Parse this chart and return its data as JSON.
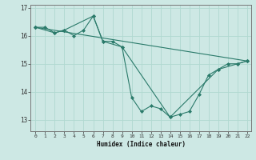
{
  "xlabel": "Humidex (Indice chaleur)",
  "background_color": "#cde8e4",
  "grid_color": "#b0d8d0",
  "line_color": "#2a7a6a",
  "xlim": [
    -0.5,
    22.4
  ],
  "ylim": [
    12.6,
    17.1
  ],
  "yticks": [
    13,
    14,
    15,
    16,
    17
  ],
  "xticks": [
    0,
    1,
    2,
    3,
    4,
    5,
    6,
    7,
    8,
    9,
    10,
    11,
    12,
    13,
    14,
    15,
    16,
    17,
    18,
    19,
    20,
    21,
    22
  ],
  "series": [
    {
      "x": [
        0,
        1,
        2,
        3,
        4,
        5,
        6,
        7,
        8,
        9,
        10,
        11,
        12,
        13,
        14,
        15,
        16,
        17,
        18,
        19,
        20,
        21,
        22
      ],
      "y": [
        16.3,
        16.3,
        16.1,
        16.2,
        16.0,
        16.2,
        16.7,
        15.8,
        15.8,
        15.6,
        13.8,
        13.3,
        13.5,
        13.4,
        13.1,
        13.2,
        13.3,
        13.9,
        14.6,
        14.8,
        15.0,
        15.0,
        15.1
      ]
    },
    {
      "x": [
        0,
        2,
        3,
        6,
        7,
        9,
        14,
        19,
        21,
        22
      ],
      "y": [
        16.3,
        16.1,
        16.2,
        16.7,
        15.8,
        15.6,
        13.1,
        14.8,
        15.0,
        15.1
      ]
    },
    {
      "x": [
        0,
        22
      ],
      "y": [
        16.3,
        15.1
      ]
    }
  ]
}
